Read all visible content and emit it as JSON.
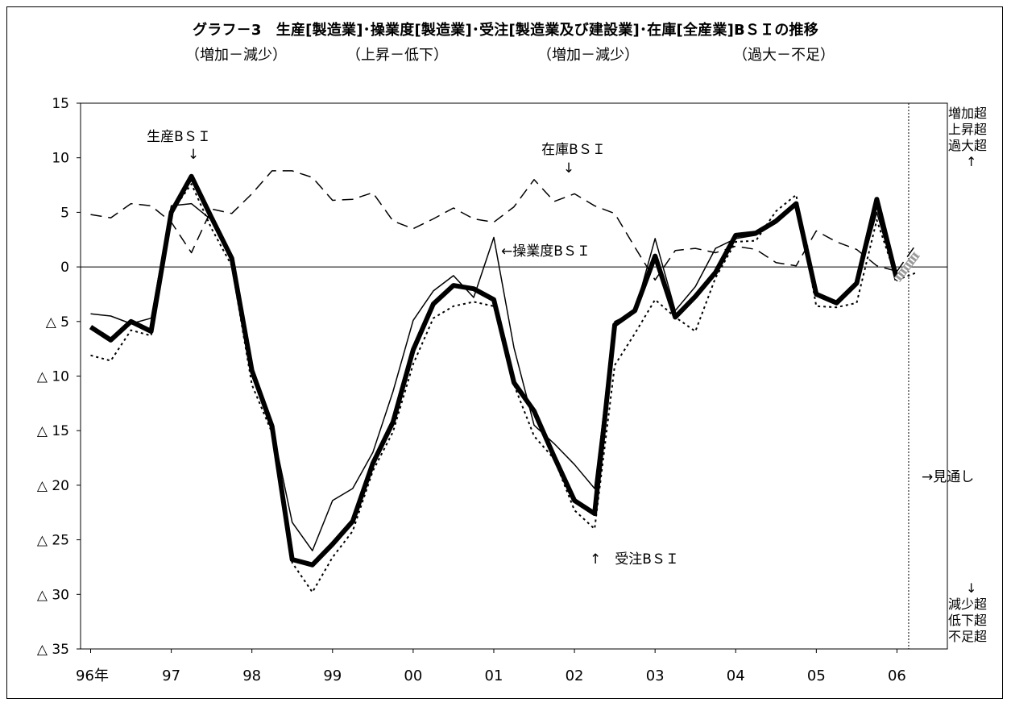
{
  "chart_data": {
    "type": "line",
    "title": "グラフ－3　生産[製造業]･操業度[製造業]･受注[製造業及び建設業]･在庫[全産業]BＳＩの推移",
    "subtitle_parts": [
      "（増加－減少）",
      "（上昇－低下）",
      "（増加－減少）",
      "（過大－不足）"
    ],
    "ylim": [
      -35,
      15
    ],
    "y_ticks": [
      {
        "value": 15,
        "label": "15"
      },
      {
        "value": 10,
        "label": "10"
      },
      {
        "value": 5,
        "label": "5"
      },
      {
        "value": 0,
        "label": "0"
      },
      {
        "value": -5,
        "label": "△ 5"
      },
      {
        "value": -10,
        "label": "△ 10"
      },
      {
        "value": -15,
        "label": "△ 15"
      },
      {
        "value": -20,
        "label": "△ 20"
      },
      {
        "value": -25,
        "label": "△ 25"
      },
      {
        "value": -30,
        "label": "△ 30"
      },
      {
        "value": -35,
        "label": "△ 35"
      }
    ],
    "x_ticks": [
      {
        "q": 0,
        "label": "96年"
      },
      {
        "q": 4,
        "label": "97"
      },
      {
        "q": 8,
        "label": "98"
      },
      {
        "q": 12,
        "label": "99"
      },
      {
        "q": 16,
        "label": "00"
      },
      {
        "q": 20,
        "label": "01"
      },
      {
        "q": 24,
        "label": "02"
      },
      {
        "q": 28,
        "label": "03"
      },
      {
        "q": 32,
        "label": "04"
      },
      {
        "q": 36,
        "label": "05"
      },
      {
        "q": 40,
        "label": "06"
      }
    ],
    "x_range_quarters": [
      -0.5,
      42.5
    ],
    "forecast_start_quarter": 41,
    "series": [
      {
        "name": "生産BＳＩ",
        "style": "thick",
        "values": [
          -5.5,
          -6.7,
          -5.0,
          -5.9,
          5.0,
          8.3,
          4.5,
          0.8,
          -9.5,
          -14.6,
          -26.8,
          -27.3,
          -25.4,
          -23.3,
          -18.0,
          -14.2,
          -7.6,
          -3.4,
          -1.7,
          -2.0,
          -3.0,
          -10.6,
          -13.2,
          -17.4,
          -21.4,
          -22.6,
          -5.3,
          -4.0,
          1.0,
          -4.6,
          -2.7,
          -0.5,
          2.9,
          3.1,
          4.2,
          5.8,
          -2.5,
          -3.3,
          -1.5,
          6.2,
          -1.2,
          1.2
        ]
      },
      {
        "name": "操業度BＳＩ",
        "style": "thin",
        "values": [
          -4.3,
          -4.5,
          -5.2,
          -4.7,
          5.6,
          5.8,
          4.3,
          0.5,
          -10.0,
          -14.6,
          -23.4,
          -26.0,
          -21.4,
          -20.3,
          -17.0,
          -11.4,
          -4.9,
          -2.2,
          -0.8,
          -2.8,
          2.7,
          -7.4,
          -14.5,
          -16.2,
          -18.1,
          -20.3,
          -5.0,
          -4.1,
          2.6,
          -4.0,
          -1.8,
          1.7,
          2.6,
          2.9,
          4.0,
          5.9,
          -2.3,
          -3.3,
          -1.6,
          5.0,
          -1.3,
          1.2
        ]
      },
      {
        "name": "受注BＳＩ",
        "style": "dotted",
        "values": [
          -8.1,
          -8.6,
          -5.8,
          -6.3,
          5.0,
          7.6,
          3.5,
          0.1,
          -10.8,
          -15.2,
          -27.1,
          -29.8,
          -26.6,
          -24.2,
          -18.7,
          -15.1,
          -8.9,
          -4.7,
          -3.6,
          -3.2,
          -3.6,
          -10.8,
          -15.5,
          -17.6,
          -22.3,
          -24.0,
          -9.0,
          -6.1,
          -3.0,
          -4.6,
          -5.9,
          -1.0,
          2.3,
          2.4,
          5.1,
          6.6,
          -3.6,
          -3.7,
          -3.3,
          4.3,
          -1.2,
          -0.5
        ]
      },
      {
        "name": "在庫BＳＩ",
        "style": "dashed",
        "values": [
          4.8,
          4.5,
          5.8,
          5.6,
          4.1,
          1.3,
          5.3,
          4.9,
          6.7,
          8.8,
          8.8,
          8.2,
          6.1,
          6.2,
          6.8,
          4.2,
          3.5,
          4.4,
          5.4,
          4.4,
          4.1,
          5.5,
          8.0,
          6.0,
          6.7,
          5.6,
          4.9,
          1.8,
          -1.2,
          1.5,
          1.7,
          1.3,
          1.9,
          1.6,
          0.4,
          0.1,
          3.3,
          2.3,
          1.6,
          0.1,
          -0.4,
          2.2
        ]
      }
    ],
    "annotations": [
      {
        "text": "生産BＳＩ",
        "arrow": "↓"
      },
      {
        "text": "在庫BＳＩ",
        "arrow": "↓"
      },
      {
        "text": "←操業度BＳＩ"
      },
      {
        "text": "↑　受注BＳＩ"
      },
      {
        "text": "→見通し"
      }
    ],
    "right_labels": {
      "top": [
        "増加超",
        "上昇超",
        "過大超",
        "↑"
      ],
      "bottom": [
        "↓",
        "減少超",
        "低下超",
        "不足超"
      ]
    },
    "grid": false,
    "legend": "none (inline annotations)"
  }
}
